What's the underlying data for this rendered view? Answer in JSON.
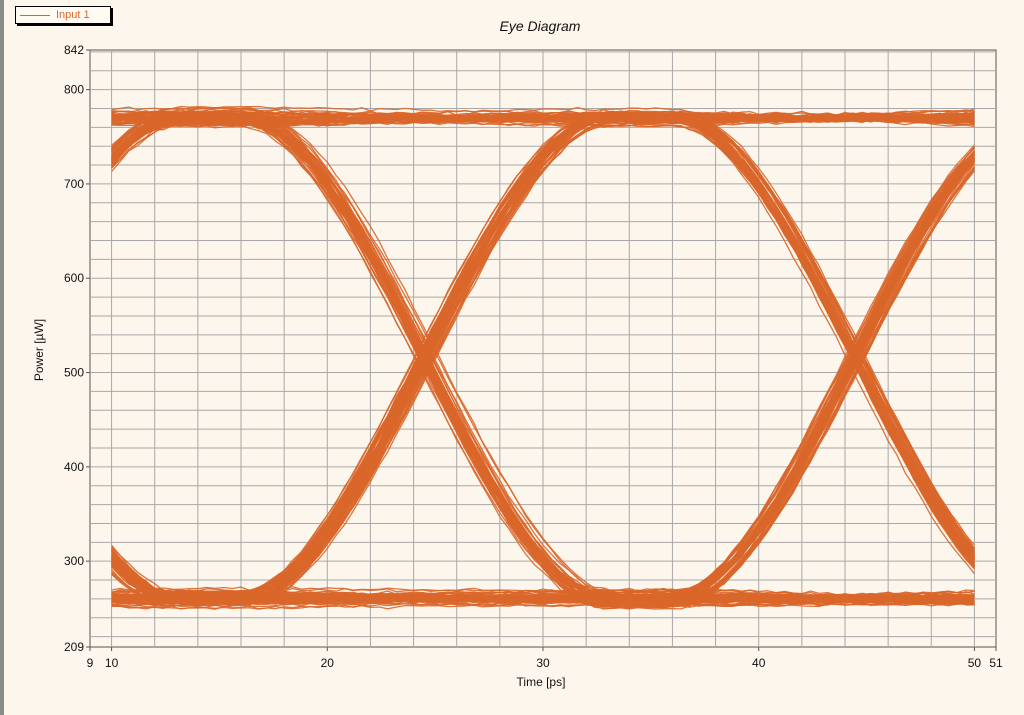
{
  "legend": {
    "label": "Input 1"
  },
  "colors": {
    "trace": "#d9662a",
    "background": "#fdf6ec",
    "grid": "#a8a8a8"
  },
  "chart_data": {
    "type": "line",
    "title": "Eye Diagram",
    "xlabel": "Time [ps]",
    "ylabel": "Power [µW]",
    "xlim": [
      9,
      51
    ],
    "ylim": [
      209,
      842
    ],
    "x_ticks": [
      9,
      10,
      20,
      30,
      40,
      50,
      51
    ],
    "y_ticks": [
      209,
      300,
      400,
      500,
      600,
      700,
      800,
      842
    ],
    "grid": true,
    "legend_position": "top-left",
    "series": [
      {
        "name": "Input 1",
        "bit_period_ps": 20,
        "eye_crossings_ps": [
          24.5,
          44.5
        ],
        "crossing_level_uW": 475,
        "high_level_uW": 770,
        "low_level_uW": 260,
        "high_band_uW": [
          725,
          805
        ],
        "low_band_uW": [
          235,
          285
        ],
        "traces": 200
      }
    ]
  }
}
